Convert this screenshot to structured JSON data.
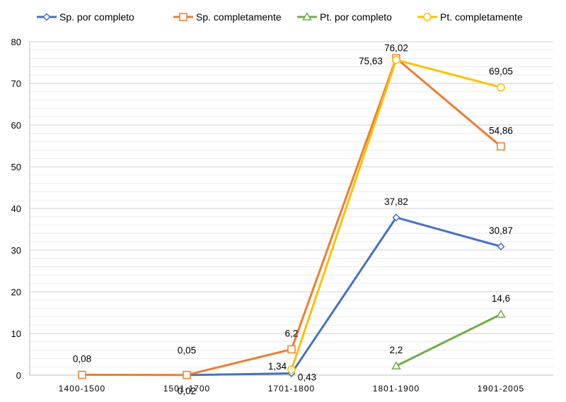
{
  "chart_data": {
    "type": "line",
    "categories": [
      "1400-1500",
      "1501-1700",
      "1701-1800",
      "1801-1900",
      "1901-2005"
    ],
    "ylim": [
      0,
      80
    ],
    "yticks": [
      0,
      10,
      20,
      30,
      40,
      50,
      60,
      70,
      80
    ],
    "minor_gridlines": true,
    "legend_position": "top",
    "series": [
      {
        "name": "Sp. por completo",
        "color": "#4472C4",
        "marker": "diamond",
        "values": [
          null,
          0.02,
          0.43,
          37.82,
          30.87
        ],
        "labels": [
          null,
          "0,02",
          "0,43",
          "37,82",
          "30,87"
        ]
      },
      {
        "name": "Sp. completamente",
        "color": "#ED7D31",
        "marker": "square",
        "values": [
          0.08,
          0.05,
          6.2,
          76.02,
          54.86
        ],
        "labels": [
          "0,08",
          "0,05",
          "6,2",
          "76,02",
          "54,86"
        ]
      },
      {
        "name": "Pt. por completo",
        "color": "#70AD47",
        "marker": "triangle",
        "values": [
          null,
          null,
          null,
          2.2,
          14.6
        ],
        "labels": [
          null,
          null,
          null,
          "2,2",
          "14,6"
        ]
      },
      {
        "name": "Pt. completamente",
        "color": "#FFC000",
        "marker": "circle",
        "values": [
          null,
          null,
          1.34,
          75.63,
          69.05
        ],
        "labels": [
          null,
          null,
          "1,34",
          "75,63",
          "69,05"
        ]
      }
    ]
  }
}
